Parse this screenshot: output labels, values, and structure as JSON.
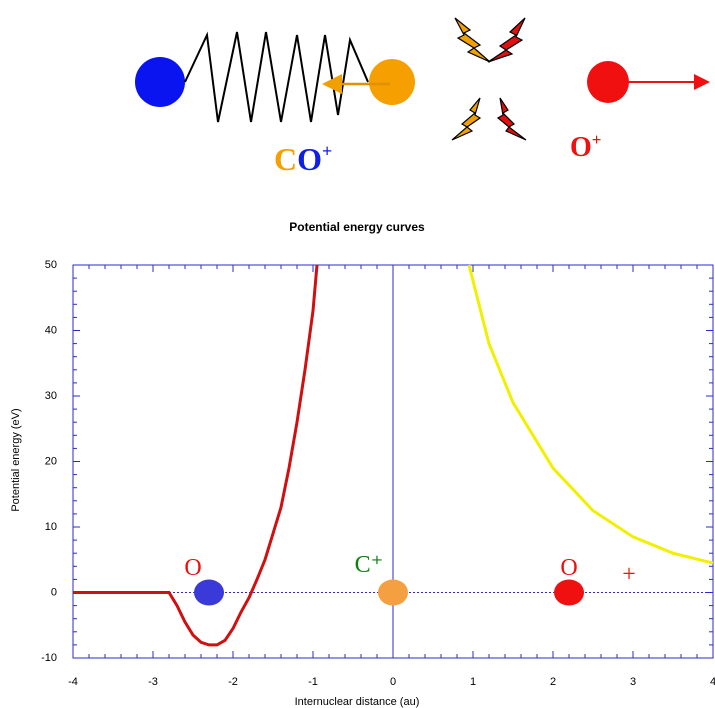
{
  "diagram": {
    "molecule_label": [
      "C",
      "O",
      "+"
    ],
    "ion_label": [
      "O",
      "+"
    ]
  },
  "chart_data": {
    "type": "line",
    "title": "Potential energy curves",
    "x_label": "Internuclear distance (au)",
    "y_label": "Potential energy (eV)",
    "xlim": [
      -4,
      4
    ],
    "ylim": [
      -10,
      50
    ],
    "xticks": [
      -4,
      -3,
      -2,
      -1,
      0,
      1,
      2,
      3,
      4
    ],
    "yticks": [
      -10,
      0,
      10,
      20,
      30,
      40,
      50
    ],
    "frame_color": "#2a2ad0",
    "series": [
      {
        "color": "#d01010",
        "x": [
          -4,
          -2.8,
          -2.7,
          -2.6,
          -2.5,
          -2.4,
          -2.3,
          -2.2,
          -2.1,
          -2.0,
          -1.9,
          -1.8,
          -1.7,
          -1.6,
          -1.5,
          -1.4,
          -1.3,
          -1.2,
          -1.1,
          -1.0,
          -0.95
        ],
        "values": [
          0,
          0,
          -2,
          -4.5,
          -6.5,
          -7.6,
          -8,
          -8,
          -7.3,
          -5.5,
          -3,
          -0.8,
          2,
          5,
          9,
          13,
          19,
          26,
          34,
          43,
          50
        ]
      },
      {
        "color": "#f0f000",
        "x": [
          0.95,
          1.2,
          1.5,
          2,
          2.5,
          3,
          3.5,
          4
        ],
        "values": [
          50,
          38,
          29,
          19,
          12.5,
          8.5,
          6,
          4.5
        ]
      }
    ],
    "markers": {
      "x": [
        -2.3,
        0,
        2.2
      ],
      "values": [
        0,
        0,
        0
      ],
      "colors": [
        "#3a3ad8",
        "#f5a040",
        "#f01010"
      ]
    },
    "annotations": [
      {
        "text": "O",
        "x": -2.5,
        "y": 3.5,
        "color": "#f01010"
      },
      {
        "text": "C⁺",
        "x": -0.3,
        "y": 4,
        "color": "#108010"
      },
      {
        "text": "O",
        "x": 2.2,
        "y": 3.5,
        "color": "#f01010"
      },
      {
        "text": "+",
        "x": 2.95,
        "y": 2.5,
        "color": "#f01010"
      }
    ]
  }
}
